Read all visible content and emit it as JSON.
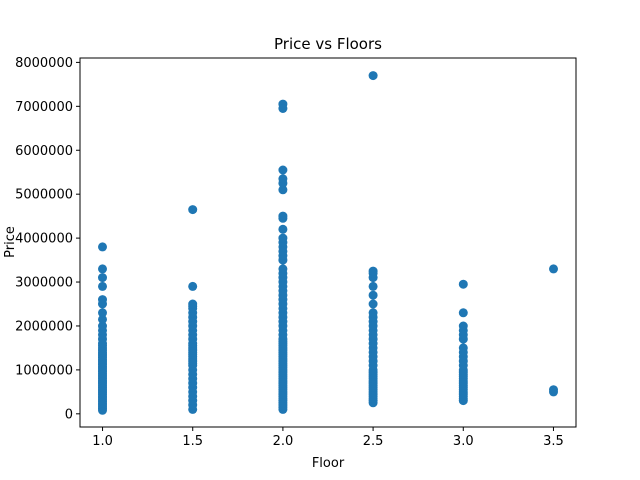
{
  "chart_data": {
    "type": "scatter",
    "title": "Price  vs Floors",
    "xlabel": "Floor",
    "ylabel": "Price",
    "xlim": [
      0.875,
      3.625
    ],
    "ylim": [
      -300000,
      8100000
    ],
    "x_ticks": [
      1.0,
      1.5,
      2.0,
      2.5,
      3.0,
      3.5
    ],
    "x_tick_labels": [
      "1.0",
      "1.5",
      "2.0",
      "2.5",
      "3.0",
      "3.5"
    ],
    "y_ticks": [
      0,
      1000000,
      2000000,
      3000000,
      4000000,
      5000000,
      6000000,
      7000000,
      8000000
    ],
    "y_tick_labels": [
      "0",
      "1000000",
      "2000000",
      "3000000",
      "4000000",
      "5000000",
      "6000000",
      "7000000",
      "8000000"
    ],
    "grid": false,
    "marker_color": "#1f77b4",
    "series": [
      {
        "x": [
          1.0,
          1.0,
          1.0,
          1.0,
          1.0,
          1.0,
          1.0,
          1.0,
          1.0,
          1.0,
          1.0,
          1.0,
          1.0,
          1.0,
          1.0,
          1.0,
          1.0,
          1.0,
          1.0,
          1.0,
          1.0,
          1.0,
          1.0,
          1.0,
          1.0,
          1.0,
          1.0,
          1.0,
          1.0,
          1.0,
          1.0,
          1.0,
          1.0,
          1.0,
          1.0,
          1.0,
          1.0,
          1.0,
          1.0,
          1.0,
          1.0,
          1.0,
          1.0,
          1.0,
          1.0,
          1.0,
          1.0,
          1.0,
          1.0,
          1.0,
          1.5,
          1.5,
          1.5,
          1.5,
          1.5,
          1.5,
          1.5,
          1.5,
          1.5,
          1.5,
          1.5,
          1.5,
          1.5,
          1.5,
          1.5,
          1.5,
          1.5,
          1.5,
          1.5,
          1.5,
          1.5,
          1.5,
          1.5,
          1.5,
          1.5,
          1.5,
          1.5,
          1.5,
          1.5,
          1.5,
          1.5,
          1.5,
          1.5,
          2.0,
          2.0,
          2.0,
          2.0,
          2.0,
          2.0,
          2.0,
          2.0,
          2.0,
          2.0,
          2.0,
          2.0,
          2.0,
          2.0,
          2.0,
          2.0,
          2.0,
          2.0,
          2.0,
          2.0,
          2.0,
          2.0,
          2.0,
          2.0,
          2.0,
          2.0,
          2.0,
          2.0,
          2.0,
          2.0,
          2.0,
          2.0,
          2.0,
          2.0,
          2.0,
          2.0,
          2.0,
          2.0,
          2.0,
          2.0,
          2.0,
          2.0,
          2.0,
          2.0,
          2.0,
          2.0,
          2.0,
          2.0,
          2.0,
          2.0,
          2.0,
          2.0,
          2.0,
          2.0,
          2.0,
          2.0,
          2.0,
          2.0,
          2.0,
          2.0,
          2.0,
          2.0,
          2.0,
          2.0,
          2.5,
          2.5,
          2.5,
          2.5,
          2.5,
          2.5,
          2.5,
          2.5,
          2.5,
          2.5,
          2.5,
          2.5,
          2.5,
          2.5,
          2.5,
          2.5,
          2.5,
          2.5,
          2.5,
          2.5,
          2.5,
          2.5,
          2.5,
          2.5,
          2.5,
          2.5,
          2.5,
          2.5,
          2.5,
          2.5,
          2.5,
          2.5,
          2.5,
          2.5,
          2.5,
          2.5,
          3.0,
          3.0,
          3.0,
          3.0,
          3.0,
          3.0,
          3.0,
          3.0,
          3.0,
          3.0,
          3.0,
          3.0,
          3.0,
          3.0,
          3.0,
          3.0,
          3.0,
          3.0,
          3.0,
          3.0,
          3.0,
          3.0,
          3.0,
          3.0,
          3.0,
          3.0,
          3.5,
          3.5,
          3.5
        ],
        "y": [
          80000,
          120000,
          160000,
          200000,
          240000,
          280000,
          320000,
          360000,
          400000,
          440000,
          480000,
          520000,
          560000,
          600000,
          640000,
          680000,
          720000,
          760000,
          800000,
          840000,
          880000,
          920000,
          960000,
          1000000,
          1040000,
          1080000,
          1120000,
          1160000,
          1200000,
          1240000,
          1280000,
          1320000,
          1360000,
          1400000,
          1450000,
          1500000,
          1550000,
          1600000,
          1700000,
          1800000,
          1900000,
          2000000,
          2150000,
          2300000,
          2500000,
          2600000,
          2900000,
          3100000,
          3300000,
          3800000,
          100000,
          200000,
          300000,
          400000,
          500000,
          600000,
          700000,
          800000,
          900000,
          1000000,
          1100000,
          1150000,
          1200000,
          1250000,
          1300000,
          1350000,
          1400000,
          1450000,
          1500000,
          1550000,
          1600000,
          1700000,
          1800000,
          1900000,
          2000000,
          2100000,
          2200000,
          2300000,
          2400000,
          2450000,
          2500000,
          2900000,
          4650000,
          100000,
          150000,
          200000,
          250000,
          300000,
          350000,
          400000,
          450000,
          500000,
          550000,
          600000,
          650000,
          700000,
          750000,
          800000,
          850000,
          900000,
          950000,
          1000000,
          1050000,
          1100000,
          1150000,
          1200000,
          1250000,
          1300000,
          1350000,
          1400000,
          1450000,
          1500000,
          1550000,
          1600000,
          1650000,
          1700000,
          1800000,
          1900000,
          2000000,
          2100000,
          2200000,
          2300000,
          2400000,
          2500000,
          2600000,
          2700000,
          2800000,
          2900000,
          3000000,
          3100000,
          3200000,
          3300000,
          3500000,
          3600000,
          3700000,
          3800000,
          3900000,
          4000000,
          4200000,
          4450000,
          4500000,
          5100000,
          5250000,
          5350000,
          5550000,
          7050000,
          6950000,
          250000,
          300000,
          350000,
          400000,
          450000,
          500000,
          550000,
          600000,
          650000,
          700000,
          750000,
          800000,
          850000,
          900000,
          950000,
          1000000,
          1100000,
          1200000,
          1300000,
          1400000,
          1500000,
          1600000,
          1700000,
          1800000,
          1900000,
          2000000,
          2100000,
          2200000,
          2300000,
          2500000,
          2700000,
          2900000,
          3100000,
          3200000,
          3250000,
          7700000,
          300000,
          350000,
          400000,
          450000,
          500000,
          550000,
          600000,
          650000,
          700000,
          750000,
          800000,
          850000,
          900000,
          950000,
          1000000,
          1100000,
          1200000,
          1300000,
          1400000,
          1500000,
          1700000,
          1800000,
          1900000,
          2000000,
          2300000,
          2950000,
          500000,
          550000,
          3300000
        ]
      }
    ]
  }
}
